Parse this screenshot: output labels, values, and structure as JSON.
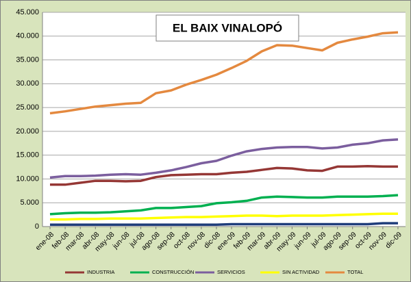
{
  "chart_data": {
    "type": "line",
    "title": "EL BAIX VINALOPÓ",
    "categories": [
      "ene-08",
      "feb-08",
      "mar-08",
      "abr-08",
      "may-08",
      "jun-08",
      "jul-08",
      "ago-08",
      "sep-08",
      "oct-08",
      "nov-08",
      "dic-08",
      "ene-09",
      "feb-09",
      "mar-09",
      "abr-09",
      "may-09",
      "jun-09",
      "jul-09",
      "ago-09",
      "sep-09",
      "oct-09",
      "nov-09",
      "dic-09"
    ],
    "series": [
      {
        "name": "INDUSTRIA",
        "color": "#953735",
        "values": [
          8800,
          8800,
          9200,
          9600,
          9600,
          9500,
          9600,
          10400,
          10800,
          10900,
          11000,
          11000,
          11300,
          11500,
          11900,
          12300,
          12200,
          11800,
          11700,
          12600,
          12600,
          12700,
          12600,
          12600
        ]
      },
      {
        "name": "CONSTRUCCIÓN",
        "color": "#00b050",
        "values": [
          2600,
          2800,
          2900,
          2900,
          3000,
          3200,
          3400,
          3900,
          3900,
          4100,
          4300,
          4900,
          5100,
          5400,
          6100,
          6300,
          6200,
          6100,
          6100,
          6300,
          6300,
          6300,
          6400,
          6600
        ]
      },
      {
        "name": "SERVICIOS",
        "color": "#7b5e9e",
        "values": [
          10300,
          10600,
          10600,
          10700,
          10900,
          11000,
          10900,
          11300,
          11800,
          12500,
          13300,
          13800,
          14900,
          15800,
          16300,
          16600,
          16700,
          16700,
          16400,
          16600,
          17200,
          17500,
          18100,
          18300
        ]
      },
      {
        "name": "SIN ACTIVIDAD",
        "color": "#ffff00",
        "values": [
          1500,
          1500,
          1600,
          1600,
          1700,
          1700,
          1700,
          1800,
          1900,
          2000,
          2000,
          2100,
          2200,
          2300,
          2300,
          2200,
          2300,
          2300,
          2300,
          2400,
          2500,
          2600,
          2700,
          2700
        ]
      },
      {
        "name": "TOTAL",
        "color": "#e4893f",
        "values": [
          23800,
          24200,
          24700,
          25200,
          25500,
          25800,
          26000,
          28000,
          28600,
          29800,
          30800,
          31900,
          33300,
          34800,
          36800,
          38100,
          38000,
          37500,
          37000,
          38600,
          39300,
          39900,
          40600,
          40800
        ]
      },
      {
        "color": "#1f3d7a",
        "values": [
          400,
          400,
          400,
          400,
          400,
          400,
          400,
          400,
          400,
          400,
          400,
          400,
          500,
          500,
          500,
          500,
          500,
          500,
          500,
          500,
          500,
          500,
          700,
          700
        ]
      }
    ],
    "ylim": [
      0,
      45000
    ],
    "yticks": [
      0,
      {
        "value": 5000,
        "label": "5.000"
      },
      {
        "value": 10000,
        "label": "10.000"
      },
      {
        "value": 15000,
        "label": "15.000"
      },
      {
        "value": 20000,
        "label": "20.000"
      },
      {
        "value": 25000,
        "label": "25.000"
      },
      {
        "value": 30000,
        "label": "30.000"
      },
      {
        "value": 35000,
        "label": "35.000"
      },
      {
        "value": 40000,
        "label": "40.000"
      },
      {
        "value": 45000,
        "label": "45.000"
      }
    ],
    "grid": true,
    "legend": "bottom"
  }
}
